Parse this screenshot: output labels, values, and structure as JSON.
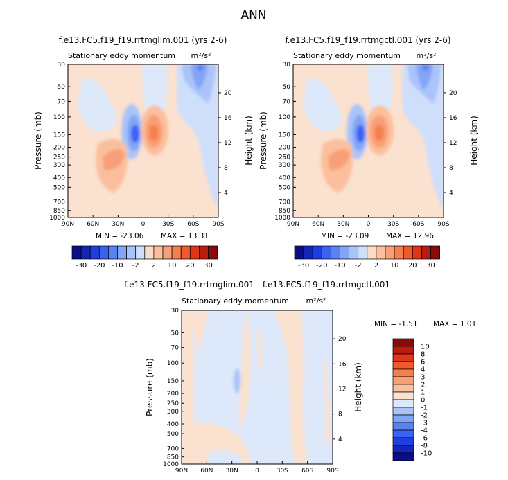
{
  "title": "ANN",
  "colors": {
    "diverging": [
      "#0b0f86",
      "#1525b8",
      "#1e3ee0",
      "#3a62f0",
      "#5b82f5",
      "#83a5f7",
      "#aac4fa",
      "#cfdffb",
      "#fbdcc6",
      "#fbbf9d",
      "#f7a077",
      "#f5804f",
      "#ef5a2c",
      "#df3619",
      "#b81b10",
      "#8a0a0a"
    ],
    "diff": [
      "#0b0f86",
      "#1525b8",
      "#1e3ee0",
      "#3a62f0",
      "#5b82f5",
      "#83a5f7",
      "#aac4fa",
      "#dde9fb",
      "#fbe1cf",
      "#fbbf9d",
      "#f7a077",
      "#f5804f",
      "#ef5a2c",
      "#df3619",
      "#b81b10",
      "#8a0a0a"
    ]
  },
  "panels": [
    {
      "title": "f.e13.FC5.f19_f19.rrtmglim.001 (yrs 2-6)",
      "subtitle": "Stationary eddy momentum",
      "units": "m²/s²",
      "min_label": "MIN = -23.06",
      "max_label": "MAX = 13.31"
    },
    {
      "title": "f.e13.FC5.f19_f19.rrtmgctl.001 (yrs 2-6)",
      "subtitle": "Stationary eddy momentum",
      "units": "m²/s²",
      "min_label": "MIN = -23.09",
      "max_label": "MAX = 12.96"
    },
    {
      "title": "f.e13.FC5.f19_f19.rrtmglim.001 - f.e13.FC5.f19_f19.rrtmgctl.001",
      "subtitle": "Stationary eddy momentum",
      "units": "m²/s²",
      "min_label": "MIN =   -1.51",
      "max_label": "MAX =   1.01"
    }
  ],
  "chart_data": [
    {
      "type": "heatmap",
      "panel": 1,
      "x_ticks": [
        "90N",
        "60N",
        "30N",
        "0",
        "30S",
        "60S",
        "90S"
      ],
      "xlim": [
        90,
        -90
      ],
      "ylabel": "Pressure (mb)",
      "y_ticks": [
        30,
        50,
        70,
        100,
        150,
        200,
        250,
        300,
        400,
        500,
        700,
        850,
        1000
      ],
      "ylim": [
        1000,
        30
      ],
      "y_scale": "log",
      "right_label": "Height (km)",
      "right_ticks": [
        4,
        8,
        12,
        16,
        20
      ],
      "contour_levels": [
        -30,
        -20,
        -10,
        -2,
        2,
        10,
        20,
        30
      ],
      "min": -23.06,
      "max": 13.31
    },
    {
      "type": "heatmap",
      "panel": 2,
      "x_ticks": [
        "90N",
        "60N",
        "30N",
        "0",
        "30S",
        "60S",
        "90S"
      ],
      "xlim": [
        90,
        -90
      ],
      "ylabel": "Pressure (mb)",
      "y_ticks": [
        30,
        50,
        70,
        100,
        150,
        200,
        250,
        300,
        400,
        500,
        700,
        850,
        1000
      ],
      "ylim": [
        1000,
        30
      ],
      "y_scale": "log",
      "right_label": "Height (km)",
      "right_ticks": [
        4,
        8,
        12,
        16,
        20
      ],
      "contour_levels": [
        -30,
        -20,
        -10,
        -2,
        2,
        10,
        20,
        30
      ],
      "min": -23.09,
      "max": 12.96
    },
    {
      "type": "heatmap",
      "panel": 3,
      "x_ticks": [
        "90N",
        "60N",
        "30N",
        "0",
        "30S",
        "60S",
        "90S"
      ],
      "xlim": [
        90,
        -90
      ],
      "ylabel": "Pressure (mb)",
      "y_ticks": [
        30,
        50,
        70,
        100,
        150,
        200,
        250,
        300,
        400,
        500,
        700,
        850,
        1000
      ],
      "ylim": [
        1000,
        30
      ],
      "y_scale": "log",
      "right_label": "Height (km)",
      "right_ticks": [
        4,
        8,
        12,
        16,
        20
      ],
      "contour_levels": [
        -10,
        -8,
        -6,
        -4,
        -3,
        -2,
        -1,
        0,
        1,
        2,
        3,
        4,
        6,
        8,
        10
      ],
      "min": -1.51,
      "max": 1.01
    }
  ],
  "colorbars": {
    "top_labels": [
      "-30",
      "-20",
      "-10",
      "-2",
      "2",
      "10",
      "20",
      "30"
    ],
    "diff_labels": [
      "10",
      "8",
      "6",
      "4",
      "3",
      "2",
      "1",
      "0",
      "-1",
      "-2",
      "-3",
      "-4",
      "-6",
      "-8",
      "-10"
    ]
  }
}
